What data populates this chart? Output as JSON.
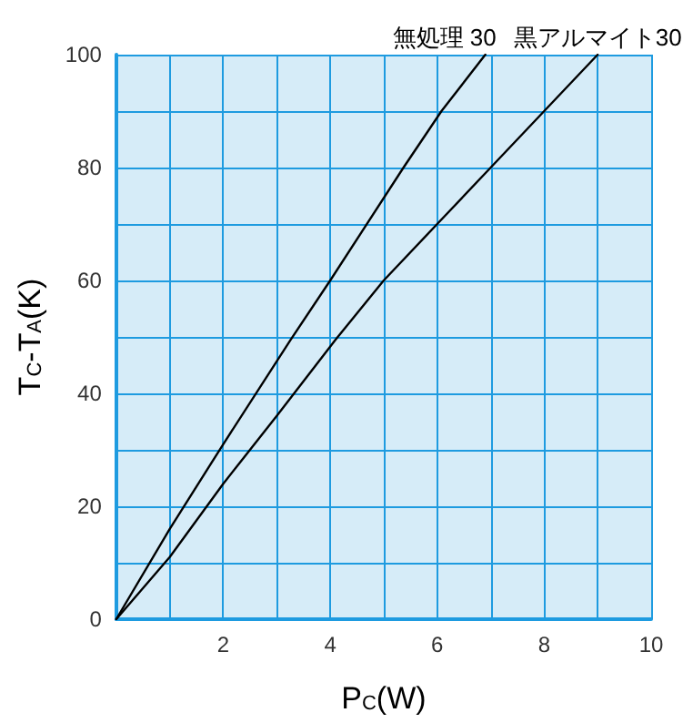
{
  "chart_data": {
    "type": "line",
    "xlabel": "P$_{C}$(W)",
    "ylabel": "T$_{C}$-T$_{A}$(K)",
    "xlim": [
      0,
      10
    ],
    "ylim": [
      0,
      100
    ],
    "xticks": [
      {
        "value": 0,
        "label": null
      },
      {
        "value": 1,
        "label": null
      },
      2,
      {
        "value": 3,
        "label": null
      },
      4,
      {
        "value": 5,
        "label": null
      },
      6,
      {
        "value": 7,
        "label": null
      },
      8,
      {
        "value": 9,
        "label": null
      },
      10
    ],
    "yticks": [
      0,
      {
        "value": 10,
        "label": null
      },
      20,
      {
        "value": 30,
        "label": null
      },
      40,
      {
        "value": 50,
        "label": null
      },
      60,
      {
        "value": 70,
        "label": null
      },
      80,
      {
        "value": 90,
        "label": null
      },
      100
    ],
    "grid": true,
    "marker": "none",
    "line_style": "solid",
    "legend": false,
    "series": [
      {
        "name": "無処理 30",
        "color": "#000000",
        "x": [
          0,
          1,
          2,
          3.26,
          4,
          5.37,
          6.08,
          6.9
        ],
        "values": [
          0,
          16,
          31,
          49.5,
          60,
          80,
          90,
          100
        ]
      },
      {
        "name": "黒アルマイト30",
        "color": "#000000",
        "x": [
          0,
          1,
          2,
          3,
          4.1,
          5,
          6,
          7,
          8,
          9
        ],
        "values": [
          0,
          11,
          24,
          36,
          49.5,
          60,
          70,
          80,
          90,
          100
        ]
      }
    ]
  }
}
